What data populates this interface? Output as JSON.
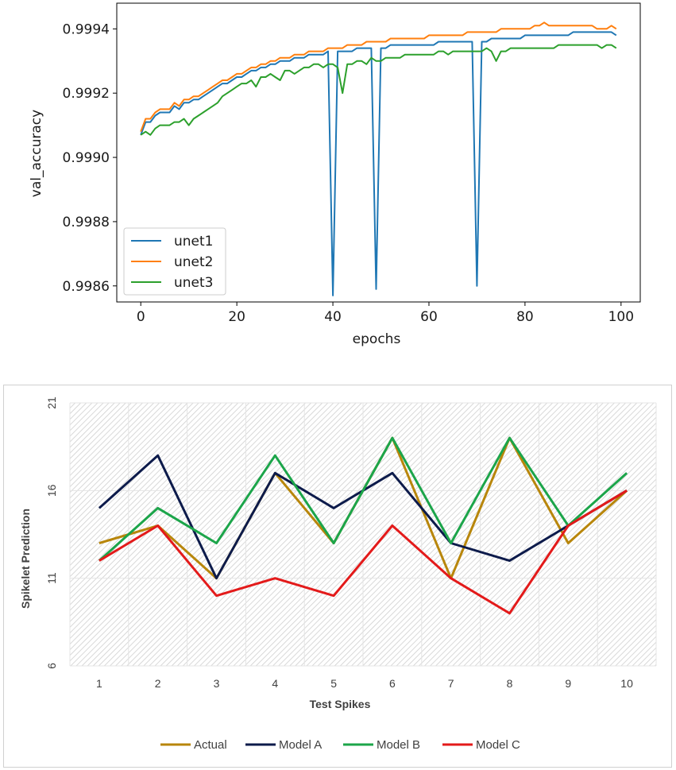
{
  "chart_data": [
    {
      "type": "line",
      "title": "",
      "xlabel": "epochs",
      "ylabel": "val_accuracy",
      "xlim": [
        -5,
        104
      ],
      "ylim": [
        0.99855,
        0.99948
      ],
      "x_ticks": [
        "0",
        "20",
        "40",
        "60",
        "80",
        "100"
      ],
      "y_ticks": [
        "0.9986",
        "0.9988",
        "0.9990",
        "0.9992",
        "0.9994"
      ],
      "grid": false,
      "legend_position": "lower-left",
      "colors": [
        "#1f77b4",
        "#ff7f0e",
        "#2ca02c"
      ],
      "series": [
        {
          "name": "unet1",
          "values": [
            0.99907,
            0.99911,
            0.99911,
            0.99913,
            0.99914,
            0.99914,
            0.99914,
            0.99916,
            0.99915,
            0.99917,
            0.99917,
            0.99918,
            0.99918,
            0.99919,
            0.9992,
            0.99921,
            0.99922,
            0.99923,
            0.99923,
            0.99924,
            0.99925,
            0.99925,
            0.99926,
            0.99927,
            0.99927,
            0.99928,
            0.99928,
            0.99929,
            0.99929,
            0.9993,
            0.9993,
            0.9993,
            0.99931,
            0.99931,
            0.99931,
            0.99932,
            0.99932,
            0.99932,
            0.99932,
            0.99933,
            0.99857,
            0.99933,
            0.99933,
            0.99933,
            0.99933,
            0.99934,
            0.99934,
            0.99934,
            0.99934,
            0.99859,
            0.99934,
            0.99934,
            0.99935,
            0.99935,
            0.99935,
            0.99935,
            0.99935,
            0.99935,
            0.99935,
            0.99935,
            0.99935,
            0.99935,
            0.99936,
            0.99936,
            0.99936,
            0.99936,
            0.99936,
            0.99936,
            0.99936,
            0.99936,
            0.9986,
            0.99936,
            0.99936,
            0.99937,
            0.99937,
            0.99937,
            0.99937,
            0.99937,
            0.99937,
            0.99937,
            0.99938,
            0.99938,
            0.99938,
            0.99938,
            0.99938,
            0.99938,
            0.99938,
            0.99938,
            0.99938,
            0.99938,
            0.99939,
            0.99939,
            0.99939,
            0.99939,
            0.99939,
            0.99939,
            0.99939,
            0.99939,
            0.99939,
            0.99938
          ]
        },
        {
          "name": "unet2",
          "values": [
            0.99908,
            0.99912,
            0.99912,
            0.99914,
            0.99915,
            0.99915,
            0.99915,
            0.99917,
            0.99916,
            0.99918,
            0.99918,
            0.99919,
            0.99919,
            0.9992,
            0.99921,
            0.99922,
            0.99923,
            0.99924,
            0.99924,
            0.99925,
            0.99926,
            0.99926,
            0.99927,
            0.99928,
            0.99928,
            0.99929,
            0.99929,
            0.9993,
            0.9993,
            0.99931,
            0.99931,
            0.99931,
            0.99932,
            0.99932,
            0.99932,
            0.99933,
            0.99933,
            0.99933,
            0.99933,
            0.99934,
            0.99934,
            0.99934,
            0.99934,
            0.99935,
            0.99935,
            0.99935,
            0.99935,
            0.99936,
            0.99936,
            0.99936,
            0.99936,
            0.99936,
            0.99937,
            0.99937,
            0.99937,
            0.99937,
            0.99937,
            0.99937,
            0.99937,
            0.99937,
            0.99938,
            0.99938,
            0.99938,
            0.99938,
            0.99938,
            0.99938,
            0.99938,
            0.99938,
            0.99939,
            0.99939,
            0.99939,
            0.99939,
            0.99939,
            0.99939,
            0.99939,
            0.9994,
            0.9994,
            0.9994,
            0.9994,
            0.9994,
            0.9994,
            0.9994,
            0.99941,
            0.99941,
            0.99942,
            0.99941,
            0.99941,
            0.99941,
            0.99941,
            0.99941,
            0.99941,
            0.99941,
            0.99941,
            0.99941,
            0.99941,
            0.9994,
            0.9994,
            0.9994,
            0.99941,
            0.9994
          ]
        },
        {
          "name": "unet3",
          "values": [
            0.99907,
            0.99908,
            0.99907,
            0.99909,
            0.9991,
            0.9991,
            0.9991,
            0.99911,
            0.99911,
            0.99912,
            0.9991,
            0.99912,
            0.99913,
            0.99914,
            0.99915,
            0.99916,
            0.99917,
            0.99919,
            0.9992,
            0.99921,
            0.99922,
            0.99923,
            0.99923,
            0.99924,
            0.99922,
            0.99925,
            0.99925,
            0.99926,
            0.99925,
            0.99924,
            0.99927,
            0.99927,
            0.99926,
            0.99927,
            0.99928,
            0.99928,
            0.99929,
            0.99929,
            0.99928,
            0.99929,
            0.99929,
            0.99928,
            0.9992,
            0.99929,
            0.99929,
            0.9993,
            0.9993,
            0.99929,
            0.99931,
            0.9993,
            0.9993,
            0.99931,
            0.99931,
            0.99931,
            0.99931,
            0.99932,
            0.99932,
            0.99932,
            0.99932,
            0.99932,
            0.99932,
            0.99932,
            0.99933,
            0.99933,
            0.99932,
            0.99933,
            0.99933,
            0.99933,
            0.99933,
            0.99933,
            0.99933,
            0.99933,
            0.99934,
            0.99933,
            0.9993,
            0.99933,
            0.99933,
            0.99934,
            0.99934,
            0.99934,
            0.99934,
            0.99934,
            0.99934,
            0.99934,
            0.99934,
            0.99934,
            0.99934,
            0.99935,
            0.99935,
            0.99935,
            0.99935,
            0.99935,
            0.99935,
            0.99935,
            0.99935,
            0.99935,
            0.99934,
            0.99935,
            0.99935,
            0.99934
          ]
        }
      ]
    },
    {
      "type": "line",
      "title": "",
      "xlabel": "Test Spikes",
      "ylabel": "Spikelet Prediction",
      "categories": [
        "1",
        "2",
        "3",
        "4",
        "5",
        "6",
        "7",
        "8",
        "9",
        "10"
      ],
      "ylim": [
        6,
        21
      ],
      "y_ticks": [
        "6",
        "11",
        "16",
        "21"
      ],
      "grid": true,
      "legend_position": "bottom",
      "colors": [
        "#b8860b",
        "#0d1b4b",
        "#1ca54a",
        "#e31a1a"
      ],
      "series": [
        {
          "name": "Actual",
          "values": [
            13,
            14,
            11,
            17,
            13,
            19,
            11,
            19,
            13,
            16
          ]
        },
        {
          "name": "Model A",
          "values": [
            15,
            18,
            11,
            17,
            15,
            17,
            13,
            12,
            14,
            16
          ]
        },
        {
          "name": "Model B",
          "values": [
            12,
            15,
            13,
            18,
            13,
            19,
            13,
            19,
            14,
            17
          ]
        },
        {
          "name": "Model C",
          "values": [
            12,
            14,
            10,
            11,
            10,
            14,
            11,
            9,
            14,
            16
          ]
        }
      ]
    }
  ]
}
